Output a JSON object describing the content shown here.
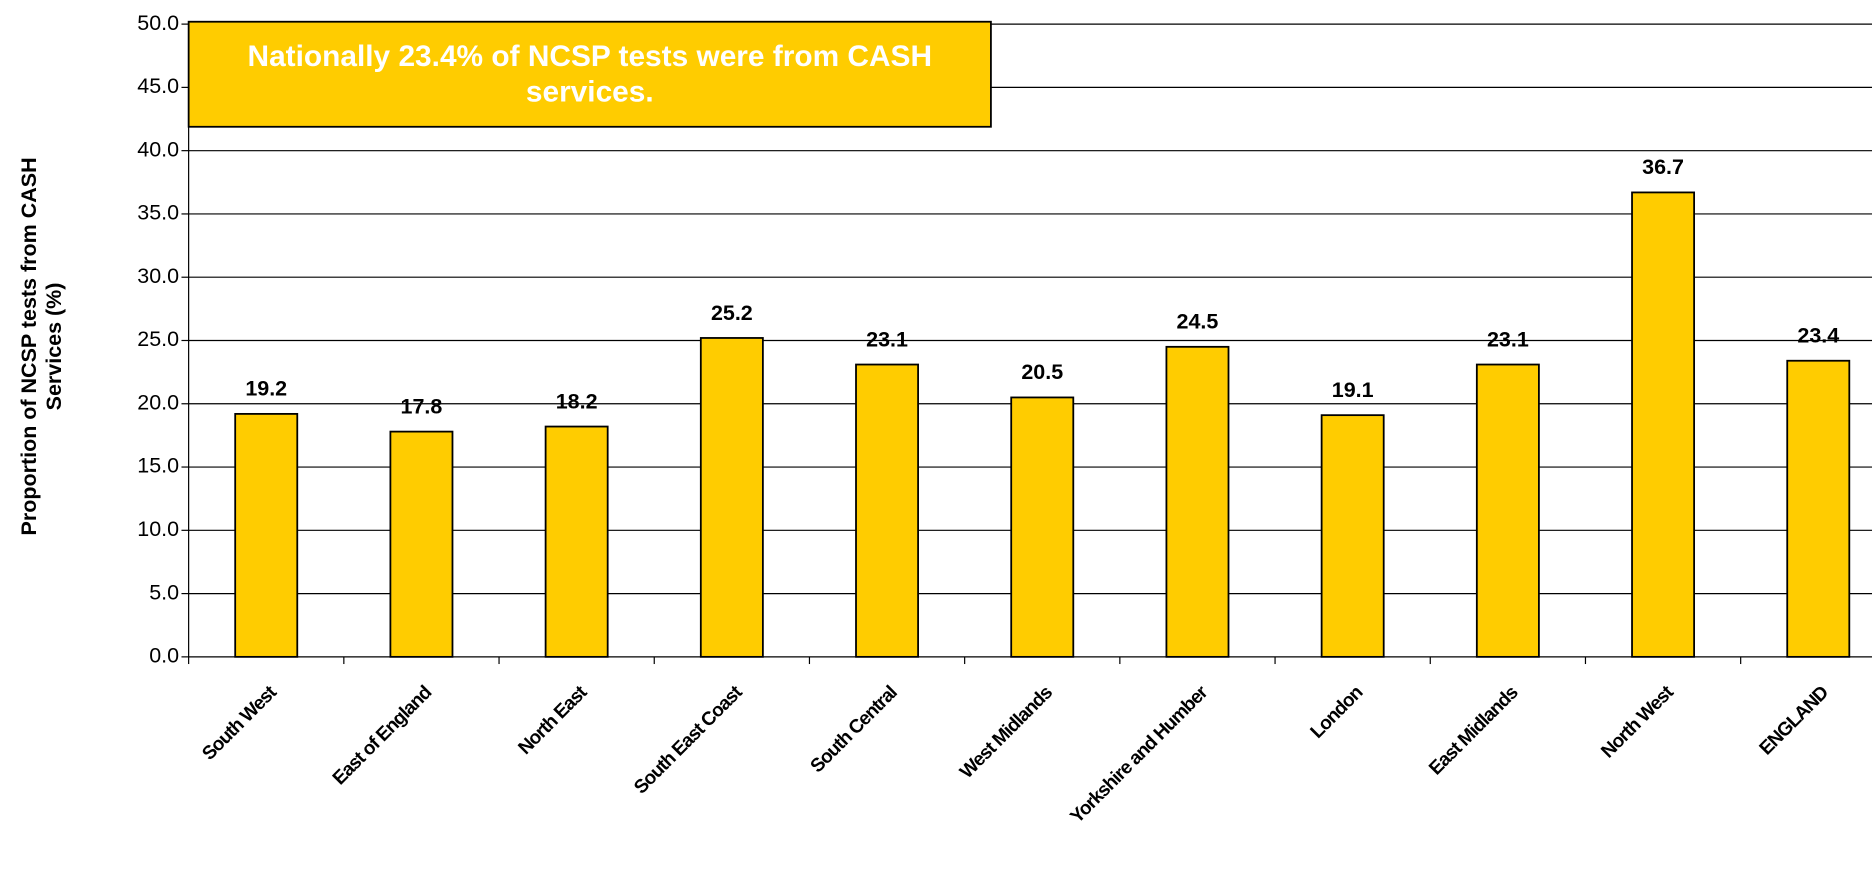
{
  "chart_data": {
    "type": "bar",
    "annotation": "Nationally 23.4% of NCSP tests were from CASH services.",
    "y_label": "Proportion of NCSP tests from CASH Services (%)",
    "categories": [
      "South West",
      "East of England",
      "North East",
      "South East Coast",
      "South Central",
      "West Midlands",
      "Yorkshire and Humber",
      "London",
      "East Midlands",
      "North West",
      "ENGLAND"
    ],
    "values": [
      19.2,
      17.8,
      18.2,
      25.2,
      23.1,
      20.5,
      24.5,
      19.1,
      23.1,
      36.7,
      23.4
    ],
    "color": "#ffcc00",
    "ylim": [
      0,
      50
    ],
    "yticks": [
      {
        "value": 0,
        "label": "0.0"
      },
      {
        "value": 5,
        "label": "5.0"
      },
      {
        "value": 10,
        "label": "10.0"
      },
      {
        "value": 15,
        "label": "15.0"
      },
      {
        "value": 20,
        "label": "20.0"
      },
      {
        "value": 25,
        "label": "25.0"
      },
      {
        "value": 30,
        "label": "30.0"
      },
      {
        "value": 35,
        "label": "35.0"
      },
      {
        "value": 40,
        "label": "40.0"
      },
      {
        "value": 45,
        "label": "45.0"
      },
      {
        "value": 50,
        "label": "50.0"
      }
    ],
    "grid": true
  }
}
